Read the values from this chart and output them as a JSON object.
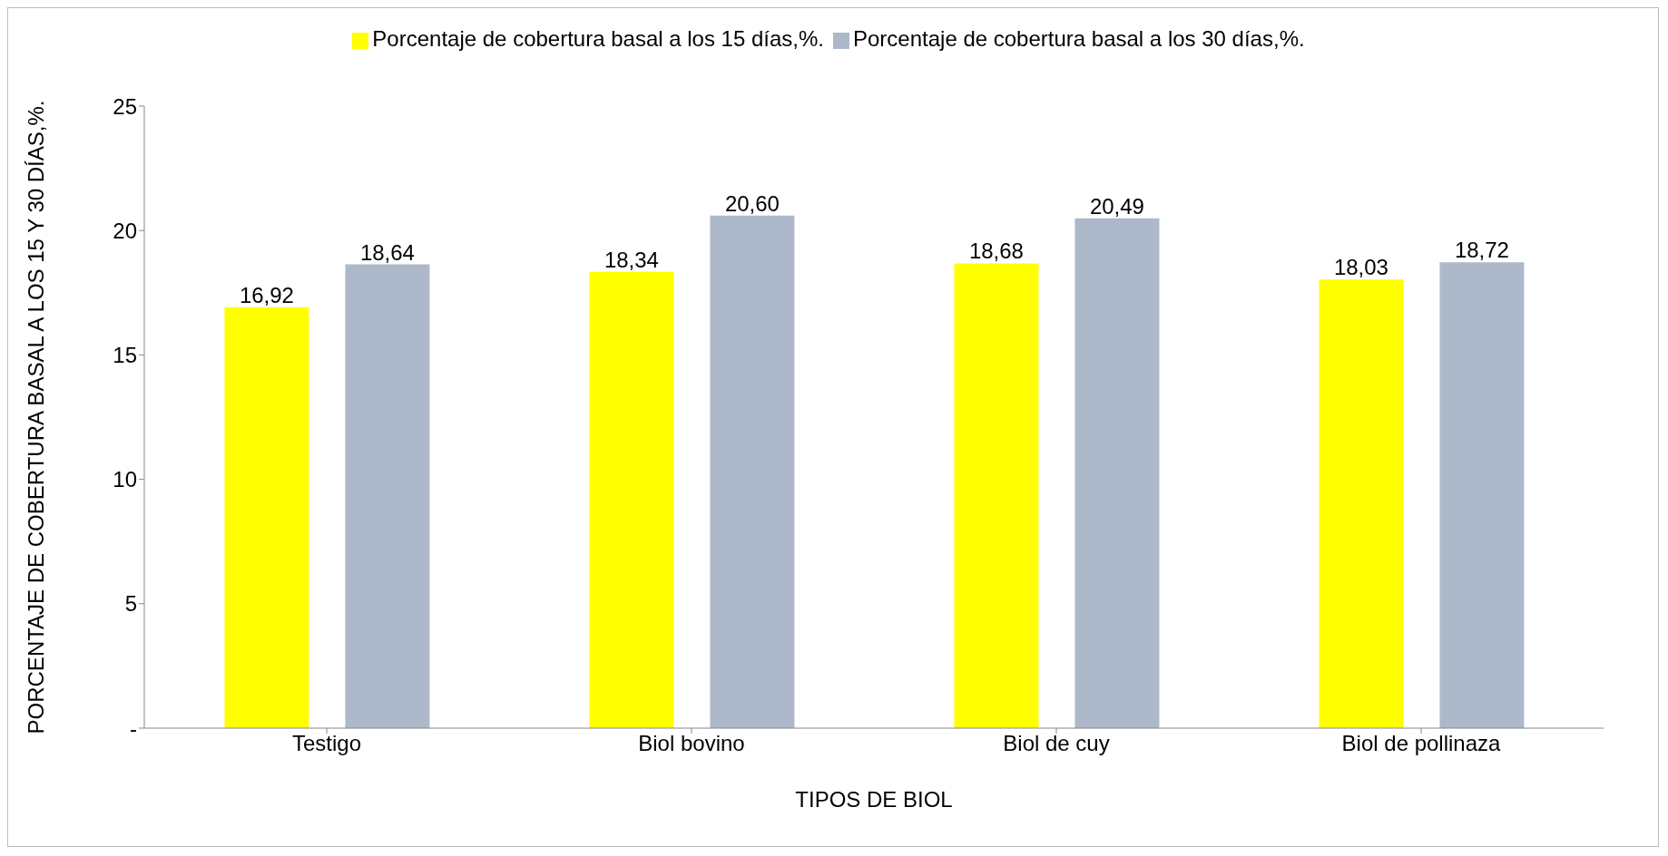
{
  "chart_data": {
    "type": "bar",
    "xlabel": "TIPOS DE BIOL",
    "ylabel": "PORCENTAJE DE COBERTURA BASAL A LOS 15 Y 30 DÍAS,%.",
    "categories": [
      "Testigo",
      "Biol bovino",
      "Biol de cuy",
      "Biol de pollinaza"
    ],
    "series": [
      {
        "name": "Porcentaje de cobertura basal a los 15 días,%.",
        "color": "#ffff00",
        "values": [
          16.92,
          18.34,
          18.68,
          18.03
        ],
        "value_labels": [
          "16,92",
          "18,34",
          "18,68",
          "18,03"
        ]
      },
      {
        "name": "Porcentaje de cobertura basal a los 30 días,%.",
        "color": "#adb9ca",
        "values": [
          18.64,
          20.6,
          20.49,
          18.72
        ],
        "value_labels": [
          "18,64",
          "20,60",
          "20,49",
          "18,72"
        ]
      }
    ],
    "ylim": [
      0,
      25
    ],
    "yticks": [
      {
        "value": 0,
        "label": "-"
      },
      5,
      10,
      15,
      20,
      25
    ],
    "grid": false,
    "legend": "top"
  }
}
